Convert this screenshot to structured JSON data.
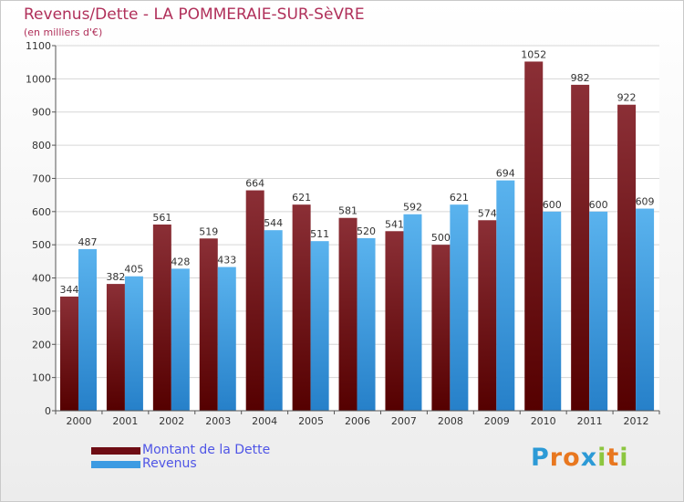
{
  "header": {
    "title": "Revenus/Dette - LA POMMERAIE-SUR-SèVRE",
    "subtitle": "(en milliers d'€)"
  },
  "legend": {
    "items": [
      {
        "label": "Montant de la Dette",
        "color": "#6e0d14"
      },
      {
        "label": "Revenus",
        "color": "#3d9be2"
      }
    ]
  },
  "logo": {
    "letters": [
      "P",
      "r",
      "o",
      "x",
      "i",
      "t",
      "i"
    ],
    "colors": [
      "#2c9ad6",
      "#e8771f",
      "#e8771f",
      "#2c9ad6",
      "#8cc63f",
      "#e8771f",
      "#8cc63f"
    ]
  },
  "colors": {
    "title": "#b0305a",
    "dette_top": "#8b2f36",
    "dette_bottom": "#550000",
    "revenus_top": "#5ab3ee",
    "revenus_bottom": "#2680c9",
    "label_text": "#333333",
    "grid": "#d6d6d6"
  },
  "chart_data": {
    "type": "bar",
    "title": "Revenus/Dette - LA POMMERAIE-SUR-SèVRE",
    "ylabel": "(en milliers d'€)",
    "xlabel": "",
    "categories": [
      "2000",
      "2001",
      "2002",
      "2003",
      "2004",
      "2005",
      "2006",
      "2007",
      "2008",
      "2009",
      "2010",
      "2011",
      "2012"
    ],
    "series": [
      {
        "name": "Montant de la Dette",
        "values": [
          344,
          382,
          561,
          519,
          664,
          621,
          581,
          541,
          500,
          574,
          1052,
          982,
          922
        ]
      },
      {
        "name": "Revenus",
        "values": [
          487,
          405,
          428,
          433,
          544,
          511,
          520,
          592,
          621,
          694,
          600,
          600,
          609
        ]
      }
    ],
    "ylim": [
      0,
      1100
    ],
    "yticks": [
      0,
      100,
      200,
      300,
      400,
      500,
      600,
      700,
      800,
      900,
      1000,
      1100
    ],
    "grid": true,
    "legend": "bottom-left"
  }
}
